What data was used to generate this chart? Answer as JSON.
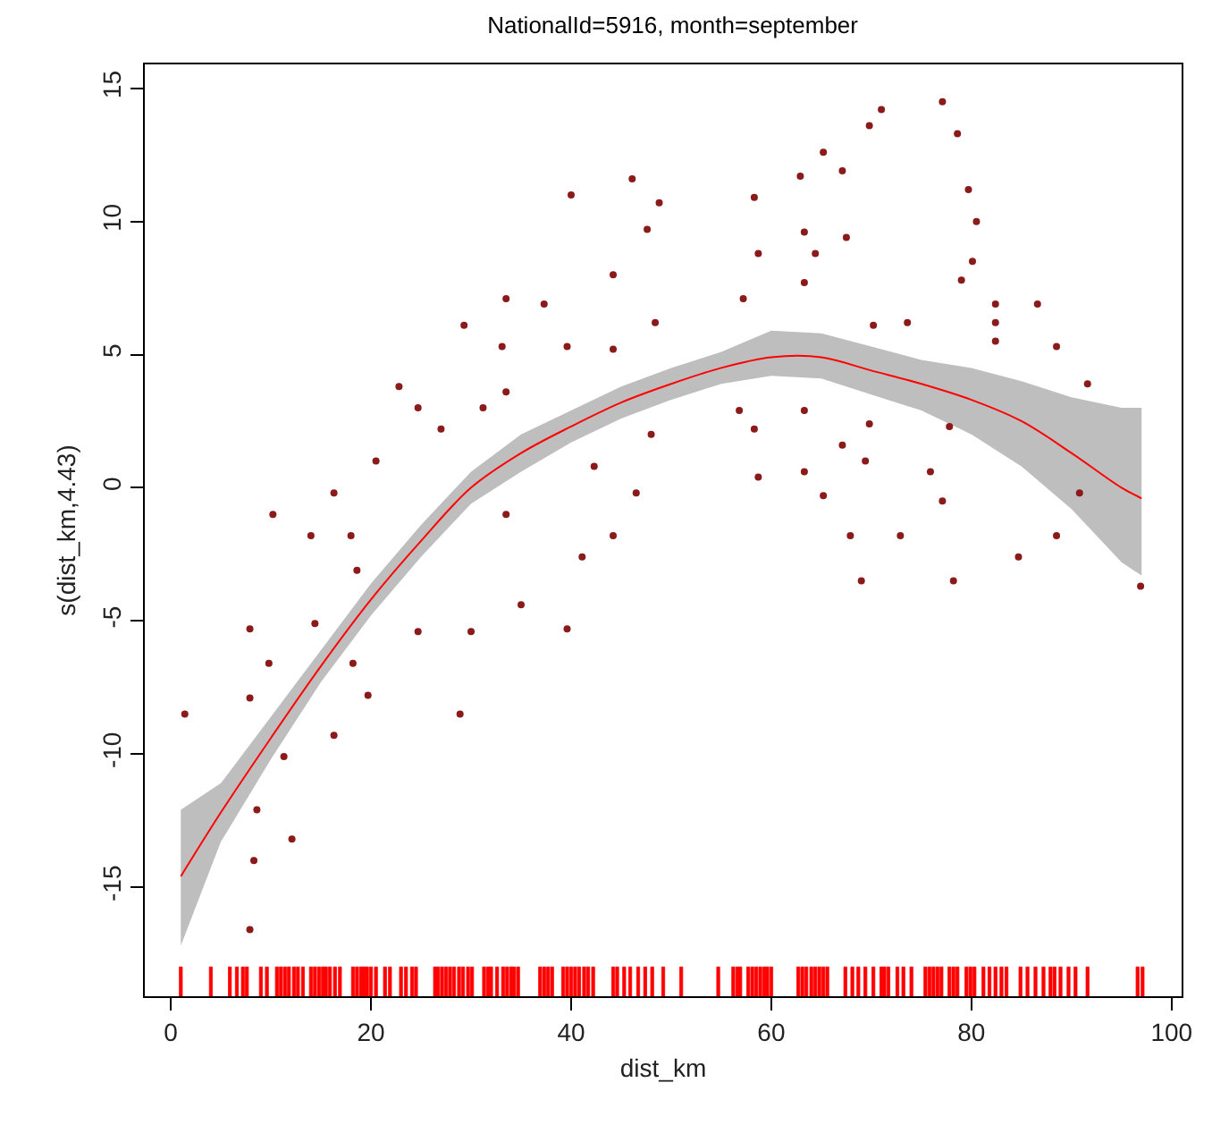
{
  "chart_data": {
    "type": "line",
    "title": "NationalId=5916, month=september",
    "xlabel": "dist_km",
    "ylabel": "s(dist_km,4.43)",
    "xlim": [
      -2.6,
      101
    ],
    "ylim": [
      -19.1,
      15.9
    ],
    "xticks": [
      0,
      20,
      40,
      60,
      80,
      100
    ],
    "yticks": [
      -15,
      -10,
      -5,
      0,
      5,
      10,
      15
    ],
    "series": [
      {
        "color": "#ff0000",
        "marker": "none",
        "x": [
          1,
          5,
          10,
          15,
          20,
          25,
          30,
          35,
          40,
          45,
          50,
          55,
          60,
          65,
          70,
          75,
          80,
          85,
          90,
          95,
          97
        ],
        "values": [
          -14.6,
          -12.2,
          -9.4,
          -6.7,
          -4.2,
          -2.0,
          0.0,
          1.3,
          2.3,
          3.2,
          3.9,
          4.5,
          4.9,
          4.9,
          4.4,
          3.9,
          3.3,
          2.5,
          1.3,
          0.0,
          -0.4
        ],
        "lower": [
          -17.2,
          -13.3,
          -10.2,
          -7.3,
          -4.8,
          -2.6,
          -0.6,
          0.6,
          1.7,
          2.6,
          3.3,
          3.9,
          4.2,
          4.1,
          3.5,
          2.9,
          2.0,
          0.8,
          -0.8,
          -2.8,
          -3.3
        ],
        "upper": [
          -12.1,
          -11.1,
          -8.6,
          -6.1,
          -3.6,
          -1.4,
          0.6,
          2.0,
          2.9,
          3.8,
          4.5,
          5.1,
          5.9,
          5.8,
          5.3,
          4.8,
          4.5,
          4.0,
          3.4,
          3.0,
          3.0
        ]
      },
      {
        "type": "scatter",
        "color": "#8b1a1a",
        "marker": "circle",
        "x": [
          77.1,
          71,
          69.8,
          78.6,
          65.2,
          62.9,
          67.1,
          46.1,
          48.8,
          40,
          58.3,
          79.7,
          80.5,
          47.6,
          63.3,
          67.5,
          58.7,
          64.4,
          44.2,
          63.3,
          79,
          80.1,
          33.5,
          37.3,
          57.2,
          82.4,
          86.6,
          29.3,
          70.2,
          73.6,
          82.4,
          48.4,
          33.1,
          39.6,
          44.2,
          82.4,
          88.5,
          22.8,
          33.5,
          24.7,
          31.2,
          56.8,
          63.3,
          91.6,
          69.8,
          27,
          48,
          58.3,
          77.8,
          67.1,
          69.4,
          20.5,
          42.3,
          58.7,
          63.3,
          75.9,
          16.3,
          46.5,
          65.2,
          77.1,
          10.2,
          90.8,
          33.5,
          14,
          18,
          44.2,
          67.9,
          72.9,
          88.5,
          41.1,
          84.7,
          18.6,
          35,
          39.6,
          69,
          78.2,
          96.9,
          7.9,
          14.4,
          24.7,
          30,
          9.8,
          18.2,
          19.7,
          7.9,
          28.9,
          1.4,
          16.3,
          11.3,
          8.6,
          12.1,
          8.3,
          7.9
        ],
        "values": [
          14.5,
          14.2,
          13.6,
          13.3,
          12.6,
          11.7,
          11.9,
          11.6,
          10.7,
          11,
          10.9,
          11.2,
          10,
          9.7,
          9.6,
          9.4,
          8.8,
          8.8,
          8,
          7.7,
          7.8,
          8.5,
          7.1,
          6.9,
          7.1,
          6.9,
          6.9,
          6.1,
          6.1,
          6.2,
          6.2,
          6.2,
          5.3,
          5.3,
          5.2,
          5.5,
          5.3,
          3.8,
          3.6,
          3,
          3,
          2.9,
          2.9,
          3.9,
          2.4,
          2.2,
          2,
          2.2,
          2.3,
          1.6,
          1,
          1,
          0.8,
          0.4,
          0.6,
          0.6,
          -0.2,
          -0.2,
          -0.3,
          -0.5,
          -1,
          -0.2,
          -1,
          -1.8,
          -1.8,
          -1.8,
          -1.8,
          -1.8,
          -1.8,
          -2.6,
          -2.6,
          -3.1,
          -4.4,
          -5.3,
          -3.5,
          -3.5,
          -3.7,
          -5.3,
          -5.1,
          -5.4,
          -5.4,
          -6.6,
          -6.6,
          -7.8,
          -7.9,
          -8.5,
          -8.5,
          -9.3,
          -10.1,
          -12.1,
          -13.2,
          -14,
          -16.6
        ]
      },
      {
        "type": "bar",
        "color": "#ff0000",
        "base": [
          -19.1,
          -19.1,
          -19.1,
          -19.1,
          -19.1,
          -19.1,
          -19.1,
          -19.1,
          -19.1,
          -19.1,
          -19.1,
          -19.1,
          -19.1,
          -19.1,
          -19.1,
          -19.1,
          -19.1,
          -19.1,
          -19.1,
          -19.1,
          -19.1,
          -19.1,
          -19.1,
          -19.1,
          -19.1,
          -19.1,
          -19.1,
          -19.1,
          -19.1,
          -19.1,
          -19.1,
          -19.1,
          -19.1,
          -19.1,
          -19.1,
          -19.1,
          -19.1,
          -19.1,
          -19.1,
          -19.1,
          -19.1,
          -19.1,
          -19.1,
          -19.1,
          -19.1,
          -19.1,
          -19.1,
          -19.1,
          -19.1,
          -19.1,
          -19.1,
          -19.1,
          -19.1,
          -19.1,
          -19.1,
          -19.1,
          -19.1,
          -19.1,
          -19.1,
          -19.1,
          -19.1,
          -19.1,
          -19.1,
          -19.1,
          -19.1,
          -19.1,
          -19.1,
          -19.1,
          -19.1,
          -19.1,
          -19.1,
          -19.1,
          -19.1,
          -19.1,
          -19.1,
          -19.1,
          -19.1,
          -19.1,
          -19.1,
          -19.1,
          -19.1,
          -19.1,
          -19.1,
          -19.1,
          -19.1,
          -19.1,
          -19.1,
          -19.1,
          -19.1,
          -19.1,
          -19.1,
          -19.1,
          -19.1,
          -19.1,
          -19.1,
          -19.1,
          -19.1,
          -19.1,
          -19.1,
          -19.1,
          -19.1,
          -19.1,
          -19.1,
          -19.1,
          -19.1,
          -19.1,
          -19.1,
          -19.1,
          -19.1,
          -19.1,
          -19.1,
          -19.1,
          -19.1,
          -19.1,
          -19.1,
          -19.1,
          -19.1,
          -19.1,
          -19.1,
          -19.1,
          -19.1,
          -19.1,
          -19.1,
          -19.1,
          -19.1,
          -19.1,
          -19.1,
          -19.1,
          -19.1,
          -19.1,
          -19.1,
          -19.1,
          -19.1,
          -19.1
        ],
        "x": [
          1,
          4,
          5.9,
          6.6,
          7.2,
          7.6,
          9,
          9.6,
          10.6,
          11,
          11.4,
          11.8,
          12.3,
          12.7,
          13.2,
          14,
          14.4,
          14.8,
          15.2,
          15.5,
          15.9,
          16.4,
          16.9,
          18.2,
          18.6,
          19,
          19.3,
          19.6,
          20,
          20.5,
          21.4,
          21.9,
          23,
          23.5,
          24.1,
          24.5,
          26.4,
          26.7,
          27.1,
          27.5,
          27.9,
          28.3,
          28.8,
          29.2,
          29.7,
          30.1,
          31.3,
          31.7,
          32,
          32.6,
          33.2,
          33.6,
          34,
          34.3,
          34.7,
          36.9,
          37.3,
          37.7,
          38.1,
          39.2,
          39.6,
          40,
          40.4,
          40.8,
          41.3,
          41.7,
          42.2,
          44.2,
          44.6,
          45.3,
          45.9,
          46.7,
          47.4,
          48.1,
          49.2,
          51,
          54.7,
          56.2,
          56.6,
          56.9,
          57.7,
          58.1,
          58.5,
          58.9,
          59.3,
          59.6,
          60,
          62.7,
          63.1,
          63.5,
          64,
          64.4,
          64.8,
          65.2,
          65.6,
          67.4,
          68.1,
          68.7,
          69.4,
          70.2,
          71,
          71.3,
          71.7,
          72.6,
          73.2,
          74,
          75.4,
          75.8,
          76.2,
          76.6,
          77,
          77.8,
          78.2,
          78.6,
          79.5,
          79.9,
          80.3,
          81.2,
          81.8,
          82.4,
          83,
          83.5,
          84.9,
          85.6,
          86.4,
          87.2,
          87.9,
          88.3,
          88.9,
          89.7,
          90.4,
          91.6,
          96.6,
          97.1
        ],
        "values": [
          1.1,
          1.1,
          1.1,
          1.1,
          1.1,
          1.1,
          1.1,
          1.1,
          1.1,
          1.1,
          1.1,
          1.1,
          1.1,
          1.1,
          1.1,
          1.1,
          1.1,
          1.1,
          1.1,
          1.1,
          1.1,
          1.1,
          1.1,
          1.1,
          1.1,
          1.1,
          1.1,
          1.1,
          1.1,
          1.1,
          1.1,
          1.1,
          1.1,
          1.1,
          1.1,
          1.1,
          1.1,
          1.1,
          1.1,
          1.1,
          1.1,
          1.1,
          1.1,
          1.1,
          1.1,
          1.1,
          1.1,
          1.1,
          1.1,
          1.1,
          1.1,
          1.1,
          1.1,
          1.1,
          1.1,
          1.1,
          1.1,
          1.1,
          1.1,
          1.1,
          1.1,
          1.1,
          1.1,
          1.1,
          1.1,
          1.1,
          1.1,
          1.1,
          1.1,
          1.1,
          1.1,
          1.1,
          1.1,
          1.1,
          1.1,
          1.1,
          1.1,
          1.1,
          1.1,
          1.1,
          1.1,
          1.1,
          1.1,
          1.1,
          1.1,
          1.1,
          1.1,
          1.1,
          1.1,
          1.1,
          1.1,
          1.1,
          1.1,
          1.1,
          1.1,
          1.1,
          1.1,
          1.1,
          1.1,
          1.1,
          1.1,
          1.1,
          1.1,
          1.1,
          1.1,
          1.1,
          1.1,
          1.1,
          1.1,
          1.1,
          1.1,
          1.1,
          1.1,
          1.1,
          1.1,
          1.1,
          1.1,
          1.1,
          1.1,
          1.1,
          1.1,
          1.1,
          1.1,
          1.1,
          1.1,
          1.1,
          1.1,
          1.1,
          1.1,
          1.1,
          1.1,
          1.1,
          1.1,
          1.1
        ]
      }
    ]
  }
}
